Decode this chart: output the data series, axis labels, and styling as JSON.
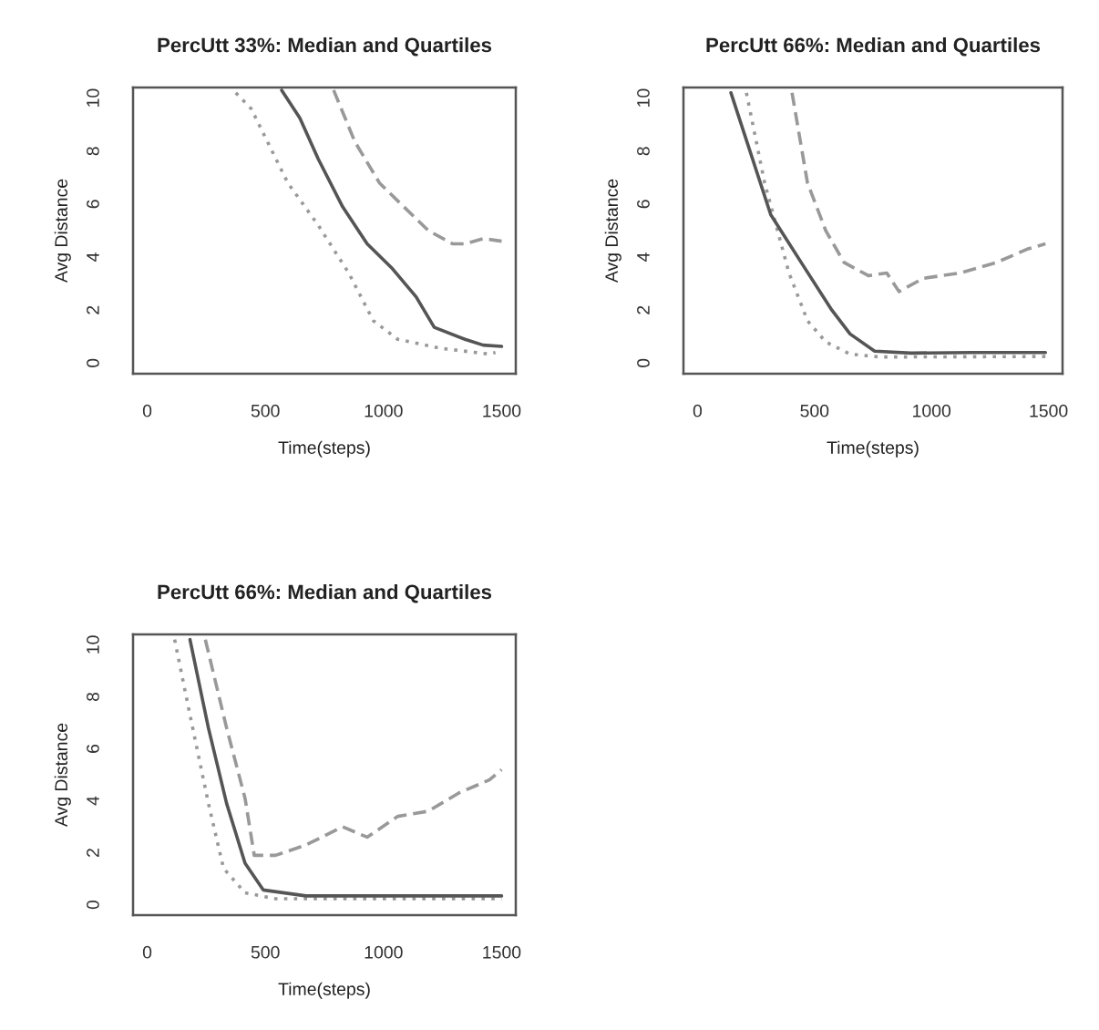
{
  "chart_data": [
    {
      "type": "line",
      "title": "PercUtt 33%: Median and Quartiles",
      "xlabel": "Time(steps)",
      "ylabel": "Avg Distance",
      "xlim": [
        -60,
        1560
      ],
      "ylim": [
        -0.4,
        10.4
      ],
      "xticks": [
        0,
        500,
        1000,
        1500
      ],
      "yticks": [
        0,
        2,
        4,
        6,
        8,
        10
      ],
      "series": [
        {
          "color": "#999999",
          "line_style": "dotted",
          "x": [
            375,
            440,
            595,
            724,
            853,
            957,
            1060,
            1241,
            1448,
            1474
          ],
          "values": [
            10.2,
            9.6,
            6.8,
            5.2,
            3.4,
            1.6,
            0.9,
            0.56,
            0.34,
            0.4
          ]
        },
        {
          "color": "#555555",
          "line_style": "solid",
          "x": [
            569,
            646,
            724,
            827,
            931,
            1034,
            1138,
            1215,
            1345,
            1422,
            1500
          ],
          "values": [
            10.3,
            9.25,
            7.7,
            5.9,
            4.5,
            3.6,
            2.5,
            1.35,
            0.9,
            0.68,
            0.63
          ]
        },
        {
          "color": "#999999",
          "line_style": "dashed",
          "x": [
            789,
            879,
            983,
            1086,
            1190,
            1293,
            1345,
            1422,
            1500
          ],
          "values": [
            10.3,
            8.35,
            6.8,
            5.9,
            5.0,
            4.5,
            4.5,
            4.7,
            4.6
          ]
        }
      ]
    },
    {
      "type": "line",
      "title": "PercUtt 66%: Median and Quartiles",
      "xlabel": "Time(steps)",
      "ylabel": "Avg Distance",
      "xlim": [
        -60,
        1560
      ],
      "ylim": [
        -0.4,
        10.4
      ],
      "xticks": [
        0,
        500,
        1000,
        1500
      ],
      "yticks": [
        0,
        2,
        4,
        6,
        8,
        10
      ],
      "series": [
        {
          "color": "#999999",
          "line_style": "dotted",
          "x": [
            209,
            287,
            391,
            470,
            548,
            652,
            783,
            1487
          ],
          "values": [
            10.2,
            6.8,
            3.4,
            1.6,
            0.8,
            0.34,
            0.23,
            0.25
          ]
        },
        {
          "color": "#555555",
          "line_style": "solid",
          "x": [
            143,
            313,
            443,
            574,
            652,
            757,
            913,
            1174,
            1487
          ],
          "values": [
            10.2,
            5.6,
            3.8,
            2.0,
            1.1,
            0.45,
            0.38,
            0.4,
            0.4
          ]
        },
        {
          "color": "#999999",
          "line_style": "dashed",
          "x": [
            404,
            470,
            548,
            626,
            730,
            809,
            861,
            965,
            1122,
            1278,
            1409,
            1487
          ],
          "values": [
            10.2,
            6.8,
            5.0,
            3.8,
            3.3,
            3.4,
            2.7,
            3.2,
            3.4,
            3.8,
            4.3,
            4.5
          ]
        }
      ]
    },
    {
      "type": "line",
      "title": "PercUtt 66%: Median and Quartiles",
      "xlabel": "Time(steps)",
      "ylabel": "Avg Distance",
      "xlim": [
        -60,
        1560
      ],
      "ylim": [
        -0.4,
        10.4
      ],
      "xticks": [
        0,
        500,
        1000,
        1500
      ],
      "yticks": [
        0,
        2,
        4,
        6,
        8,
        10
      ],
      "series": [
        {
          "color": "#999999",
          "line_style": "dotted",
          "x": [
            116,
            181,
            259,
            323,
            414,
            543,
            1500
          ],
          "values": [
            10.2,
            7.3,
            3.9,
            1.4,
            0.46,
            0.23,
            0.23
          ]
        },
        {
          "color": "#555555",
          "line_style": "solid",
          "x": [
            181,
            259,
            336,
            414,
            491,
            672,
            1500
          ],
          "values": [
            10.2,
            6.8,
            3.9,
            1.6,
            0.57,
            0.34,
            0.34
          ]
        },
        {
          "color": "#999999",
          "line_style": "dashed",
          "x": [
            246,
            336,
            414,
            453,
            543,
            672,
            827,
            931,
            1060,
            1190,
            1319,
            1448,
            1500
          ],
          "values": [
            10.2,
            6.8,
            4.1,
            1.9,
            1.9,
            2.3,
            3.0,
            2.6,
            3.4,
            3.6,
            4.3,
            4.8,
            5.2
          ]
        }
      ]
    }
  ]
}
